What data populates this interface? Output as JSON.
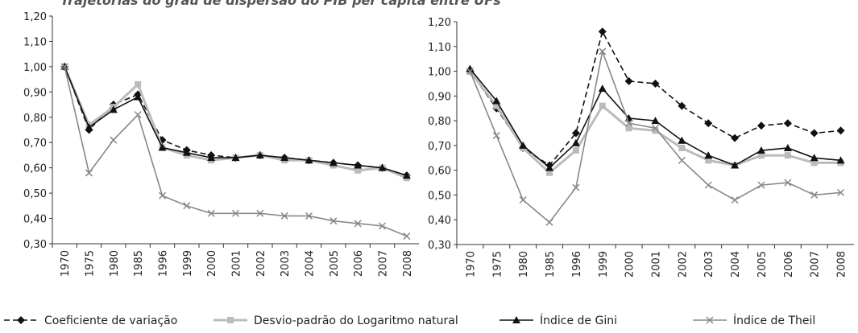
{
  "title": "Trajetórias do grau de dispersão do PIB per capita entre UFs",
  "legend": [
    "Coeficiente de variação",
    "Desvio-padrão do Logaritmo natural",
    "Índice de Gini",
    "Índice de Theil"
  ],
  "chart_data": [
    {
      "type": "line",
      "categories": [
        "1970",
        "1975",
        "1980",
        "1985",
        "1996",
        "1999",
        "2000",
        "2001",
        "2002",
        "2003",
        "2004",
        "2005",
        "2006",
        "2007",
        "2008"
      ],
      "ylim": [
        0.3,
        1.2
      ],
      "yticks": [
        {
          "value": 0.3,
          "label": "0,30"
        },
        {
          "value": 0.4,
          "label": "0,40"
        },
        {
          "value": 0.5,
          "label": "0,50"
        },
        {
          "value": 0.6,
          "label": "0,60"
        },
        {
          "value": 0.7,
          "label": "0,70"
        },
        {
          "value": 0.8,
          "label": "0,80"
        },
        {
          "value": 0.9,
          "label": "0,90"
        },
        {
          "value": 1.0,
          "label": "1,00"
        },
        {
          "value": 1.1,
          "label": "1,10"
        },
        {
          "value": 1.2,
          "label": "1,20"
        }
      ],
      "series": [
        {
          "color": "#111111",
          "marker": "diamond",
          "dash": true,
          "values": [
            1.0,
            0.75,
            0.85,
            0.89,
            0.71,
            0.67,
            0.65,
            0.64,
            0.65,
            0.64,
            0.63,
            0.62,
            0.61,
            0.6,
            0.57
          ]
        },
        {
          "color": "#bbbbbb",
          "marker": "square",
          "dash": false,
          "values": [
            1.0,
            0.77,
            0.84,
            0.93,
            0.68,
            0.65,
            0.63,
            0.64,
            0.65,
            0.63,
            0.63,
            0.61,
            0.59,
            0.6,
            0.56
          ]
        },
        {
          "color": "#111111",
          "marker": "triangle",
          "dash": false,
          "values": [
            1.0,
            0.76,
            0.83,
            0.88,
            0.68,
            0.66,
            0.64,
            0.64,
            0.65,
            0.64,
            0.63,
            0.62,
            0.61,
            0.6,
            0.57
          ]
        },
        {
          "color": "#888888",
          "marker": "x",
          "dash": false,
          "values": [
            1.0,
            0.58,
            0.71,
            0.81,
            0.49,
            0.45,
            0.42,
            0.42,
            0.42,
            0.41,
            0.41,
            0.39,
            0.38,
            0.37,
            0.33
          ]
        }
      ]
    },
    {
      "type": "line",
      "categories": [
        "1970",
        "1975",
        "1980",
        "1985",
        "1996",
        "1999",
        "2000",
        "2001",
        "2002",
        "2003",
        "2004",
        "2005",
        "2006",
        "2007",
        "2008"
      ],
      "ylim": [
        0.3,
        1.2
      ],
      "yticks": [
        {
          "value": 0.3,
          "label": "0,30"
        },
        {
          "value": 0.4,
          "label": "0,40"
        },
        {
          "value": 0.5,
          "label": "0,50"
        },
        {
          "value": 0.6,
          "label": "0,60"
        },
        {
          "value": 0.7,
          "label": "0,70"
        },
        {
          "value": 0.8,
          "label": "0,80"
        },
        {
          "value": 0.9,
          "label": "0,90"
        },
        {
          "value": 1.0,
          "label": "1,00"
        },
        {
          "value": 1.1,
          "label": "1,10"
        },
        {
          "value": 1.2,
          "label": "1,20"
        }
      ],
      "series": [
        {
          "color": "#111111",
          "marker": "diamond",
          "dash": true,
          "values": [
            1.0,
            0.85,
            0.69,
            0.62,
            0.75,
            1.16,
            0.96,
            0.95,
            0.86,
            0.79,
            0.73,
            0.78,
            0.79,
            0.75,
            0.76
          ]
        },
        {
          "color": "#bbbbbb",
          "marker": "square",
          "dash": false,
          "values": [
            1.0,
            0.86,
            0.69,
            0.59,
            0.68,
            0.86,
            0.77,
            0.76,
            0.69,
            0.64,
            0.62,
            0.66,
            0.66,
            0.63,
            0.63
          ]
        },
        {
          "color": "#111111",
          "marker": "triangle",
          "dash": false,
          "values": [
            1.01,
            0.88,
            0.7,
            0.61,
            0.71,
            0.93,
            0.81,
            0.8,
            0.72,
            0.66,
            0.62,
            0.68,
            0.69,
            0.65,
            0.64
          ]
        },
        {
          "color": "#888888",
          "marker": "x",
          "dash": false,
          "values": [
            1.0,
            0.74,
            0.48,
            0.39,
            0.53,
            1.08,
            0.79,
            0.77,
            0.64,
            0.54,
            0.48,
            0.54,
            0.55,
            0.5,
            0.51
          ]
        }
      ]
    }
  ]
}
